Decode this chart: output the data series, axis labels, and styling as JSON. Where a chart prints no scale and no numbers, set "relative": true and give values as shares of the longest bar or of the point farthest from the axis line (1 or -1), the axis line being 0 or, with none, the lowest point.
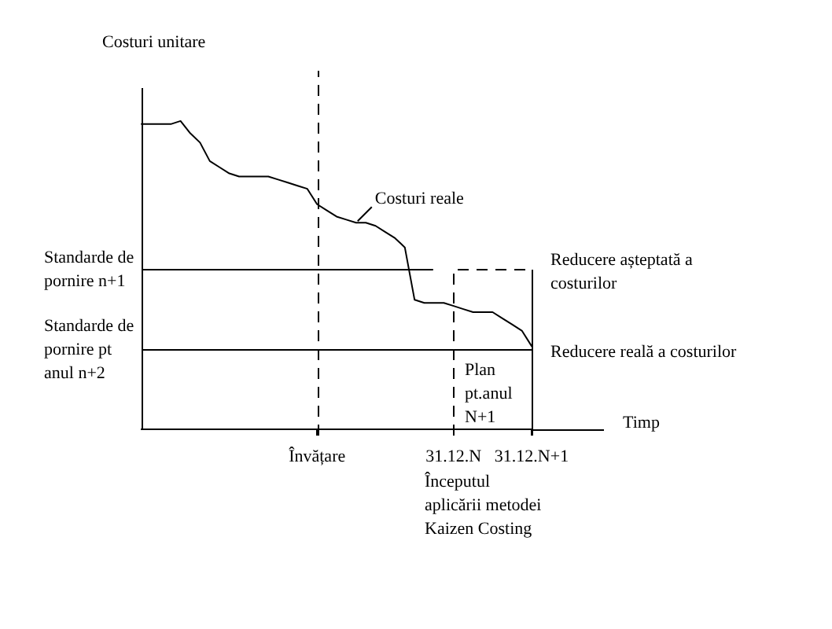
{
  "chart_data": {
    "type": "line",
    "relative": true,
    "ylabel": "Costuri unitare",
    "xlabel": "Timp",
    "categories": [
      null,
      null,
      null,
      null,
      null,
      null,
      null,
      null,
      null,
      null,
      null,
      null,
      null,
      null,
      null,
      null,
      null,
      null,
      "Învățare",
      null,
      null,
      null,
      null,
      null,
      null,
      null,
      null,
      null,
      null,
      null,
      null,
      null,
      "31.12.N",
      null,
      null,
      null,
      null,
      null,
      null,
      null,
      "31.12.N+1"
    ],
    "series": [
      {
        "name": "Costuri reale",
        "color": "#000000",
        "values": [
          0.99,
          0.99,
          0.99,
          0.99,
          1,
          0.96,
          0.93,
          0.87,
          0.85,
          0.83,
          0.82,
          0.82,
          0.82,
          0.82,
          0.81,
          0.8,
          0.79,
          0.78,
          0.73,
          0.71,
          0.69,
          0.68,
          0.67,
          0.67,
          0.66,
          0.64,
          0.62,
          0.59,
          0.42,
          0.41,
          0.41,
          0.41,
          0.4,
          0.39,
          0.38,
          0.38,
          0.38,
          0.36,
          0.34,
          0.32,
          0.27
        ]
      }
    ],
    "ref_lines": [
      {
        "axis": "y",
        "value": 0.52,
        "label": "Standarde de pornire n+1"
      },
      {
        "axis": "y",
        "value": 0.26,
        "label": "Standarde de pornire pt anul n+2"
      },
      {
        "axis": "x",
        "value": "Învățare",
        "line_style": "dashed"
      },
      {
        "axis": "x",
        "value": "31.12.N",
        "line_style": "dashed",
        "label": "Plan pt.anul N+1"
      },
      {
        "axis": "x",
        "value": "31.12.N+1"
      }
    ],
    "annotations": [
      "Începutul aplicării metodei Kaizen Costing",
      {
        "text": "Reducere așteptată a costurilor",
        "x": "31.12.N+1",
        "y": 0.52
      },
      {
        "text": "Reducere reală a costurilor",
        "x": "31.12.N+1",
        "y": 0.26
      }
    ]
  }
}
